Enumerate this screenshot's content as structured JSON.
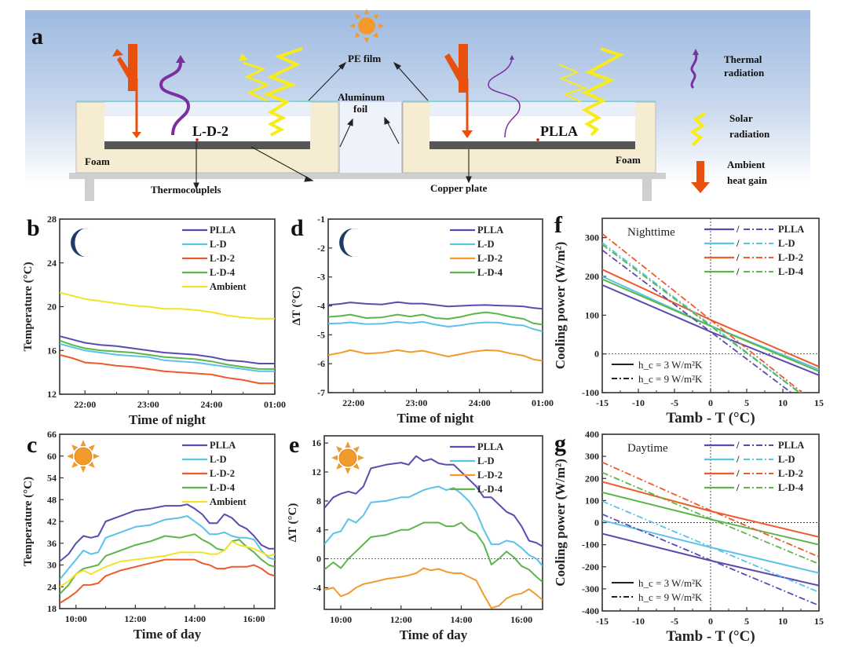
{
  "colors": {
    "PLLA": "#5b4bb0",
    "L-D": "#5bc2ea",
    "L-D-2": "#ef5a2a",
    "L-D-2_dT": "#f39a2c",
    "L-D-4": "#5cb64a",
    "Ambient": "#f2e22a",
    "sky_top": "#9db9e0",
    "foam": "#f6ecd2",
    "plate": "#555555",
    "heat_arrow": "#e8500e",
    "thermal": "#7b2fa0",
    "solar": "#f7ec1a",
    "sun": "#f39a2c",
    "moon": "#1d3b66"
  },
  "panel_a": {
    "label": "a",
    "sample_left": "L-D-2",
    "sample_right": "PLLA",
    "foam_left": "Foam",
    "foam_right": "Foam",
    "pe_film": "PE film",
    "aluminum_1": "Aluminum",
    "aluminum_2": "foil",
    "thermocouples": "Thermocouplels",
    "copper_plate": "Copper plate",
    "legend": {
      "thermal_1": "Thermal",
      "thermal_2": "radiation",
      "solar_1": "Solar",
      "solar_2": "radiation",
      "heat_1": "Ambient",
      "heat_2": "heat gain"
    }
  },
  "chart_data": [
    {
      "id": "b",
      "panel_label": "b",
      "type": "line",
      "icon": "moon",
      "title": "",
      "xlabel": "Time of night",
      "ylabel": "Temperature (°C)",
      "xlim": [
        21.6,
        25.0
      ],
      "ylim": [
        12,
        28
      ],
      "xticks": [
        22,
        23,
        24,
        25
      ],
      "xtick_labels": [
        "22:00",
        "23:00",
        "24:00",
        "01:00"
      ],
      "yticks": [
        12,
        16,
        20,
        24,
        28
      ],
      "ytick_labels": [
        "12",
        "16",
        "20",
        "24",
        "28"
      ],
      "legend": [
        "PLLA",
        "L-D",
        "L-D-2",
        "L-D-4",
        "Ambient"
      ],
      "legend_position": "top-right",
      "x": [
        21.6,
        21.8,
        22.0,
        22.25,
        22.5,
        22.75,
        23.0,
        23.25,
        23.5,
        23.75,
        24.0,
        24.25,
        24.5,
        24.75,
        25.0
      ],
      "series": [
        {
          "name": "PLLA",
          "values": [
            17.3,
            17.0,
            16.7,
            16.5,
            16.4,
            16.2,
            16.0,
            15.8,
            15.7,
            15.6,
            15.4,
            15.1,
            15.0,
            14.8,
            14.8
          ]
        },
        {
          "name": "L-D",
          "values": [
            16.6,
            16.3,
            16.0,
            15.8,
            15.6,
            15.5,
            15.4,
            15.1,
            15.0,
            14.9,
            14.7,
            14.5,
            14.3,
            14.1,
            14.1
          ]
        },
        {
          "name": "L-D-2",
          "values": [
            15.6,
            15.3,
            14.9,
            14.8,
            14.6,
            14.5,
            14.3,
            14.1,
            14.0,
            13.9,
            13.8,
            13.5,
            13.3,
            13.0,
            13.0
          ]
        },
        {
          "name": "L-D-4",
          "values": [
            16.9,
            16.5,
            16.2,
            16.0,
            15.9,
            15.8,
            15.6,
            15.4,
            15.3,
            15.2,
            15.0,
            14.7,
            14.5,
            14.3,
            14.3
          ]
        },
        {
          "name": "Ambient",
          "values": [
            21.3,
            21.0,
            20.7,
            20.5,
            20.3,
            20.1,
            20.0,
            19.8,
            19.8,
            19.7,
            19.5,
            19.2,
            19.0,
            18.9,
            18.9
          ]
        }
      ]
    },
    {
      "id": "c",
      "panel_label": "c",
      "type": "line",
      "icon": "sun",
      "title": "",
      "xlabel": "Time of day",
      "ylabel": "Temperature (°C)",
      "xlim": [
        9.45,
        16.7
      ],
      "ylim": [
        18,
        66
      ],
      "xticks": [
        10,
        12,
        14,
        16
      ],
      "xtick_labels": [
        "10:00",
        "12:00",
        "14:00",
        "16:00"
      ],
      "yticks": [
        18,
        24,
        30,
        36,
        42,
        48,
        54,
        60,
        66
      ],
      "ytick_labels": [
        "18",
        "24",
        "30",
        "36",
        "42",
        "48",
        "54",
        "60",
        "66"
      ],
      "legend": [
        "PLLA",
        "L-D",
        "L-D-2",
        "L-D-4",
        "Ambient"
      ],
      "legend_position": "top-right",
      "x": [
        9.45,
        9.75,
        10.0,
        10.25,
        10.5,
        10.75,
        11.0,
        11.5,
        12.0,
        12.5,
        13.0,
        13.5,
        13.75,
        14.0,
        14.25,
        14.5,
        14.75,
        15.0,
        15.25,
        15.5,
        15.75,
        16.0,
        16.25,
        16.5,
        16.7
      ],
      "series": [
        {
          "name": "PLLA",
          "values": [
            31,
            33,
            36,
            38,
            37.5,
            38,
            42,
            43.5,
            45,
            45.5,
            46.3,
            46.3,
            46.7,
            45.5,
            44,
            41.5,
            41.5,
            44,
            43,
            41,
            40,
            38,
            35.5,
            34.5,
            34.5
          ]
        },
        {
          "name": "L-D",
          "values": [
            26,
            29,
            31.5,
            34,
            33,
            33.5,
            37.5,
            39,
            40.5,
            41,
            42.5,
            43,
            43.5,
            42,
            40.5,
            38.5,
            38.5,
            39,
            38,
            37.5,
            37.5,
            37,
            34,
            32,
            31.5
          ]
        },
        {
          "name": "L-D-2",
          "values": [
            19.5,
            21,
            22.5,
            24.5,
            24.5,
            25,
            27,
            28.5,
            29.5,
            30.5,
            31.5,
            31.5,
            31.5,
            31.5,
            30.5,
            30,
            29,
            29,
            29.5,
            29.5,
            29.5,
            30,
            29,
            27.5,
            27
          ]
        },
        {
          "name": "L-D-4",
          "values": [
            22,
            24.5,
            27.5,
            29,
            29.5,
            30,
            32.5,
            34,
            35.5,
            36.5,
            38,
            37.5,
            38,
            38.5,
            37,
            36,
            34.5,
            34,
            36.5,
            37,
            35,
            33.5,
            31.5,
            30,
            29.5
          ]
        },
        {
          "name": "Ambient",
          "values": [
            24,
            25.5,
            27.5,
            28.5,
            27.5,
            28.5,
            29.5,
            31,
            31.5,
            32,
            32.5,
            33.5,
            33.5,
            33.5,
            33.5,
            33,
            33,
            34,
            36.5,
            35.5,
            35,
            34.5,
            33.5,
            32.5,
            33
          ]
        }
      ]
    },
    {
      "id": "d",
      "panel_label": "d",
      "type": "line",
      "icon": "moon",
      "title": "",
      "xlabel": "Time of night",
      "ylabel": "ΔT (°C)",
      "xlim": [
        21.6,
        25.0
      ],
      "ylim": [
        -7,
        -1
      ],
      "xticks": [
        22,
        23,
        24,
        25
      ],
      "xtick_labels": [
        "22:00",
        "23:00",
        "24:00",
        "01:00"
      ],
      "yticks": [
        -7,
        -6,
        -5,
        -4,
        -3,
        -2,
        -1
      ],
      "ytick_labels": [
        "-7",
        "-6",
        "-5",
        "-4",
        "-3",
        "-2",
        "-1"
      ],
      "legend": [
        "PLLA",
        "L-D",
        "L-D-2",
        "L-D-4"
      ],
      "legend_position": "top-right",
      "x": [
        21.6,
        21.8,
        21.95,
        22.2,
        22.45,
        22.7,
        22.9,
        23.1,
        23.3,
        23.5,
        23.7,
        23.9,
        24.1,
        24.3,
        24.5,
        24.7,
        24.85,
        25.0
      ],
      "series": [
        {
          "name": "PLLA",
          "values": [
            -3.97,
            -3.93,
            -3.88,
            -3.93,
            -3.95,
            -3.87,
            -3.92,
            -3.92,
            -3.97,
            -4.02,
            -4.0,
            -3.98,
            -3.97,
            -3.99,
            -4.0,
            -4.02,
            -4.07,
            -4.1
          ]
        },
        {
          "name": "L-D",
          "values": [
            -4.62,
            -4.6,
            -4.57,
            -4.63,
            -4.62,
            -4.55,
            -4.6,
            -4.55,
            -4.65,
            -4.72,
            -4.67,
            -4.6,
            -4.57,
            -4.58,
            -4.65,
            -4.68,
            -4.8,
            -4.88
          ]
        },
        {
          "name": "L-D-2",
          "values": [
            -5.7,
            -5.62,
            -5.53,
            -5.65,
            -5.62,
            -5.53,
            -5.6,
            -5.55,
            -5.65,
            -5.75,
            -5.67,
            -5.58,
            -5.53,
            -5.55,
            -5.65,
            -5.72,
            -5.85,
            -5.9
          ]
        },
        {
          "name": "L-D-4",
          "values": [
            -4.38,
            -4.35,
            -4.3,
            -4.42,
            -4.4,
            -4.3,
            -4.37,
            -4.3,
            -4.42,
            -4.45,
            -4.38,
            -4.28,
            -4.22,
            -4.28,
            -4.38,
            -4.45,
            -4.6,
            -4.65
          ]
        }
      ]
    },
    {
      "id": "e",
      "panel_label": "e",
      "type": "line",
      "icon": "sun",
      "title": "",
      "xlabel": "Time of day",
      "ylabel": "ΔT (°C)",
      "xlim": [
        9.45,
        16.7
      ],
      "ylim": [
        -7,
        17
      ],
      "xticks": [
        10,
        12,
        14,
        16
      ],
      "xtick_labels": [
        "10:00",
        "12:00",
        "14:00",
        "16:00"
      ],
      "yticks": [
        -4,
        0,
        4,
        8,
        12,
        16
      ],
      "ytick_labels": [
        "-4",
        "0",
        "4",
        "8",
        "12",
        "16"
      ],
      "reference_line": 0,
      "legend": [
        "PLLA",
        "L-D",
        "L-D-2",
        "L-D-4"
      ],
      "legend_position": "top-right",
      "x": [
        9.45,
        9.75,
        10.0,
        10.25,
        10.5,
        10.75,
        11.0,
        11.5,
        12.0,
        12.25,
        12.5,
        12.75,
        13.0,
        13.25,
        13.5,
        13.75,
        14.0,
        14.25,
        14.5,
        14.75,
        15.0,
        15.25,
        15.5,
        15.75,
        16.0,
        16.25,
        16.5,
        16.7
      ],
      "series": [
        {
          "name": "PLLA",
          "values": [
            7,
            8.5,
            9,
            9.3,
            9,
            10,
            12.5,
            13,
            13.3,
            13,
            14.2,
            13.5,
            13.8,
            13.2,
            13,
            13,
            12,
            11,
            10,
            8.5,
            8.5,
            7.5,
            6.5,
            6,
            4.5,
            2.5,
            2.2,
            1.7
          ]
        },
        {
          "name": "L-D",
          "values": [
            2,
            3.5,
            3.8,
            5.5,
            5,
            6,
            7.8,
            8,
            8.5,
            8.5,
            9,
            9.5,
            9.8,
            10,
            9.5,
            9.8,
            9,
            8,
            6.5,
            4,
            2,
            2,
            2.5,
            2.3,
            1.5,
            0.5,
            0,
            -1
          ]
        },
        {
          "name": "L-D-4",
          "values": [
            -1.5,
            -0.5,
            -1.3,
            0,
            1,
            2,
            3,
            3.3,
            4,
            4,
            4.5,
            5,
            5,
            5,
            4.5,
            4.5,
            5,
            4,
            3.5,
            2,
            -0.8,
            0,
            1,
            0.2,
            -1,
            -1.5,
            -2.5,
            -3.2
          ]
        },
        {
          "name": "L-D-2",
          "values": [
            -4.3,
            -4,
            -5.2,
            -4.8,
            -4,
            -3.5,
            -3.3,
            -2.8,
            -2.5,
            -2.3,
            -2,
            -1.3,
            -1.6,
            -1.4,
            -1.8,
            -2,
            -2,
            -2.5,
            -3,
            -5,
            -6.8,
            -6.5,
            -5.5,
            -5,
            -4.8,
            -4.2,
            -5,
            -5.7
          ]
        }
      ],
      "series_colors_note": "L-D-2 drawn in orange"
    },
    {
      "id": "f",
      "panel_label": "f",
      "type": "line",
      "title": "Nighttime",
      "xlabel": "Tamb - T (°C)",
      "ylabel": "Cooling power (W/m²)",
      "xlim": [
        -15,
        15
      ],
      "ylim": [
        -100,
        350
      ],
      "xticks": [
        -15,
        -10,
        -5,
        0,
        5,
        10,
        15
      ],
      "xtick_labels": [
        "-15",
        "-10",
        "-5",
        "0",
        "5",
        "10",
        "15"
      ],
      "yticks": [
        -100,
        0,
        100,
        200,
        300
      ],
      "ytick_labels": [
        "-100",
        "0",
        "100",
        "200",
        "300"
      ],
      "reference_lines": {
        "x": 0,
        "y": 0
      },
      "legend": [
        "PLLA",
        "L-D",
        "L-D-2",
        "L-D-4"
      ],
      "legend_sep": "/",
      "legend_position": "top-right",
      "style_legend": [
        "h_c = 3 W/m²K",
        "h_c = 9 W/m²K"
      ],
      "style_legend_position": "bottom-left",
      "x": [
        -15,
        0,
        15
      ],
      "series": [
        {
          "name": "PLLA",
          "hc": 3,
          "style": "solid",
          "values": [
            178,
            57,
            -55
          ]
        },
        {
          "name": "L-D",
          "hc": 3,
          "style": "solid",
          "values": [
            200,
            72,
            -40
          ]
        },
        {
          "name": "L-D-2",
          "hc": 3,
          "style": "solid",
          "values": [
            218,
            88,
            -33
          ]
        },
        {
          "name": "L-D-4",
          "hc": 3,
          "style": "solid",
          "values": [
            193,
            72,
            -45
          ]
        },
        {
          "name": "PLLA",
          "hc": 9,
          "style": "dashdot",
          "values": [
            268,
            57,
            -154
          ]
        },
        {
          "name": "L-D",
          "hc": 9,
          "style": "dashdot",
          "values": [
            287,
            75,
            -137
          ]
        },
        {
          "name": "L-D-2",
          "hc": 9,
          "style": "dashdot",
          "values": [
            310,
            88,
            -134
          ]
        },
        {
          "name": "L-D-4",
          "hc": 9,
          "style": "dashdot",
          "values": [
            282,
            72,
            -138
          ]
        }
      ]
    },
    {
      "id": "g",
      "panel_label": "g",
      "type": "line",
      "title": "Daytime",
      "xlabel": "Tamb - T (°C)",
      "ylabel": "Cooling power (W/m²)",
      "xlim": [
        -15,
        15
      ],
      "ylim": [
        -400,
        400
      ],
      "xticks": [
        -15,
        -10,
        -5,
        0,
        5,
        10,
        15
      ],
      "xtick_labels": [
        "-15",
        "-10",
        "-5",
        "0",
        "5",
        "10",
        "15"
      ],
      "yticks": [
        -400,
        -300,
        -200,
        -100,
        0,
        100,
        200,
        300,
        400
      ],
      "ytick_labels": [
        "-400",
        "-300",
        "-200",
        "-100",
        "0",
        "100",
        "200",
        "300",
        "400"
      ],
      "reference_lines": {
        "x": 0,
        "y": 0
      },
      "legend": [
        "PLLA",
        "L-D",
        "L-D-2",
        "L-D-4"
      ],
      "legend_sep": "/",
      "legend_position": "top-right",
      "style_legend": [
        "h_c = 3 W/m²K",
        "h_c = 9 W/m²K"
      ],
      "style_legend_position": "bottom-left",
      "x": [
        -15,
        0,
        15
      ],
      "series": [
        {
          "name": "PLLA",
          "hc": 3,
          "style": "solid",
          "values": [
            -50,
            -172,
            -285
          ]
        },
        {
          "name": "L-D",
          "hc": 3,
          "style": "solid",
          "values": [
            10,
            -112,
            -228
          ]
        },
        {
          "name": "L-D-2",
          "hc": 3,
          "style": "solid",
          "values": [
            185,
            52,
            -65
          ]
        },
        {
          "name": "L-D-4",
          "hc": 3,
          "style": "solid",
          "values": [
            137,
            15,
            -100
          ]
        },
        {
          "name": "PLLA",
          "hc": 9,
          "style": "dashdot",
          "values": [
            38,
            -170,
            -375
          ]
        },
        {
          "name": "L-D",
          "hc": 9,
          "style": "dashdot",
          "values": [
            97,
            -110,
            -315
          ]
        },
        {
          "name": "L-D-2",
          "hc": 9,
          "style": "dashdot",
          "values": [
            273,
            55,
            -155
          ]
        },
        {
          "name": "L-D-4",
          "hc": 9,
          "style": "dashdot",
          "values": [
            227,
            17,
            -187
          ]
        }
      ]
    }
  ]
}
